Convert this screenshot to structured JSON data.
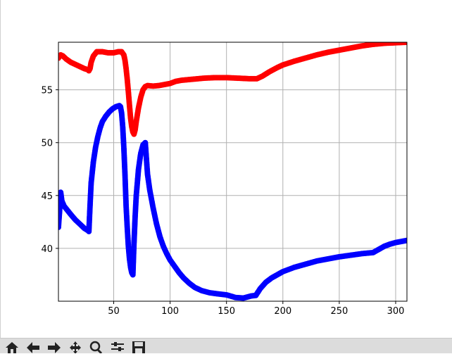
{
  "window": {
    "title": ""
  },
  "toolbar": {
    "buttons": [
      {
        "name": "home",
        "icon": "home-icon"
      },
      {
        "name": "back",
        "icon": "back-arrow-icon"
      },
      {
        "name": "forward",
        "icon": "forward-arrow-icon"
      },
      {
        "name": "pan",
        "icon": "pan-move-icon"
      },
      {
        "name": "zoom",
        "icon": "zoom-magnifier-icon"
      },
      {
        "name": "configure-subplots",
        "icon": "sliders-icon"
      },
      {
        "name": "save",
        "icon": "save-floppy-icon"
      }
    ]
  },
  "chart_data": {
    "type": "scatter",
    "title": "",
    "xlabel": "",
    "ylabel": "",
    "grid": true,
    "xlim": [
      1,
      310
    ],
    "ylim": [
      35,
      59.5
    ],
    "xticks": [
      50,
      100,
      150,
      200,
      250,
      300
    ],
    "yticks": [
      40,
      45,
      50,
      55
    ],
    "xtick_labels": [
      "50",
      "100",
      "150",
      "200",
      "250",
      "300"
    ],
    "ytick_labels": [
      "40",
      "45",
      "50",
      "55"
    ],
    "colors": {
      "red_series": "#ff0000",
      "blue_series": "#0000ff",
      "grid": "#b0b0b0"
    },
    "series": [
      {
        "name": "red",
        "color": "#ff0000",
        "marker": "circle",
        "points": [
          [
            1,
            58.0
          ],
          [
            3,
            58.3
          ],
          [
            5,
            58.2
          ],
          [
            8,
            57.9
          ],
          [
            12,
            57.6
          ],
          [
            16,
            57.4
          ],
          [
            20,
            57.2
          ],
          [
            24,
            57.0
          ],
          [
            27,
            56.9
          ],
          [
            28,
            56.8
          ],
          [
            29,
            57.0
          ],
          [
            30,
            57.6
          ],
          [
            32,
            58.2
          ],
          [
            35,
            58.6
          ],
          [
            40,
            58.6
          ],
          [
            45,
            58.5
          ],
          [
            50,
            58.5
          ],
          [
            54,
            58.6
          ],
          [
            57,
            58.6
          ],
          [
            59,
            58.3
          ],
          [
            60,
            57.8
          ],
          [
            61,
            57.0
          ],
          [
            62,
            56.0
          ],
          [
            63,
            54.8
          ],
          [
            64,
            53.5
          ],
          [
            65,
            52.3
          ],
          [
            66,
            51.5
          ],
          [
            67,
            51.0
          ],
          [
            68,
            50.8
          ],
          [
            69,
            51.2
          ],
          [
            70,
            52.0
          ],
          [
            72,
            53.3
          ],
          [
            74,
            54.3
          ],
          [
            76,
            55.0
          ],
          [
            78,
            55.3
          ],
          [
            80,
            55.4
          ],
          [
            85,
            55.35
          ],
          [
            90,
            55.4
          ],
          [
            95,
            55.5
          ],
          [
            100,
            55.6
          ],
          [
            105,
            55.8
          ],
          [
            110,
            55.9
          ],
          [
            120,
            56.0
          ],
          [
            130,
            56.1
          ],
          [
            140,
            56.15
          ],
          [
            150,
            56.15
          ],
          [
            160,
            56.1
          ],
          [
            170,
            56.05
          ],
          [
            177,
            56.05
          ],
          [
            182,
            56.3
          ],
          [
            188,
            56.7
          ],
          [
            195,
            57.1
          ],
          [
            200,
            57.35
          ],
          [
            210,
            57.7
          ],
          [
            220,
            58.0
          ],
          [
            230,
            58.3
          ],
          [
            240,
            58.55
          ],
          [
            250,
            58.75
          ],
          [
            260,
            58.95
          ],
          [
            270,
            59.15
          ],
          [
            280,
            59.3
          ],
          [
            290,
            59.4
          ],
          [
            300,
            59.45
          ],
          [
            310,
            59.5
          ]
        ]
      },
      {
        "name": "blue",
        "color": "#0000ff",
        "marker": "circle",
        "points": [
          [
            1,
            42.0
          ],
          [
            2,
            43.5
          ],
          [
            3,
            45.3
          ],
          [
            4,
            44.5
          ],
          [
            6,
            44.0
          ],
          [
            9,
            43.6
          ],
          [
            12,
            43.2
          ],
          [
            16,
            42.7
          ],
          [
            20,
            42.3
          ],
          [
            24,
            41.9
          ],
          [
            27,
            41.7
          ],
          [
            28,
            41.6
          ],
          [
            29,
            44.0
          ],
          [
            30,
            46.2
          ],
          [
            32,
            48.2
          ],
          [
            34,
            49.6
          ],
          [
            36,
            50.6
          ],
          [
            38,
            51.4
          ],
          [
            40,
            52.0
          ],
          [
            43,
            52.5
          ],
          [
            46,
            52.9
          ],
          [
            49,
            53.2
          ],
          [
            52,
            53.4
          ],
          [
            55,
            53.5
          ],
          [
            56,
            53.4
          ],
          [
            57,
            52.8
          ],
          [
            58,
            51.5
          ],
          [
            59,
            49.5
          ],
          [
            60,
            47.0
          ],
          [
            61,
            44.0
          ],
          [
            62,
            42.0
          ],
          [
            63,
            40.2
          ],
          [
            64,
            39.0
          ],
          [
            65,
            38.2
          ],
          [
            66,
            37.7
          ],
          [
            67,
            37.5
          ],
          [
            68,
            40.5
          ],
          [
            69,
            43.0
          ],
          [
            70,
            45.0
          ],
          [
            72,
            47.5
          ],
          [
            74,
            49.0
          ],
          [
            76,
            49.8
          ],
          [
            78,
            50.0
          ],
          [
            80,
            47.0
          ],
          [
            82,
            45.5
          ],
          [
            85,
            43.8
          ],
          [
            88,
            42.3
          ],
          [
            91,
            41.1
          ],
          [
            94,
            40.2
          ],
          [
            97,
            39.5
          ],
          [
            100,
            38.9
          ],
          [
            104,
            38.3
          ],
          [
            108,
            37.7
          ],
          [
            112,
            37.2
          ],
          [
            117,
            36.7
          ],
          [
            122,
            36.3
          ],
          [
            128,
            36.0
          ],
          [
            135,
            35.8
          ],
          [
            142,
            35.7
          ],
          [
            150,
            35.6
          ],
          [
            158,
            35.35
          ],
          [
            165,
            35.3
          ],
          [
            172,
            35.5
          ],
          [
            176,
            35.55
          ],
          [
            180,
            36.2
          ],
          [
            185,
            36.8
          ],
          [
            190,
            37.2
          ],
          [
            195,
            37.5
          ],
          [
            200,
            37.8
          ],
          [
            210,
            38.2
          ],
          [
            220,
            38.5
          ],
          [
            230,
            38.8
          ],
          [
            240,
            39.0
          ],
          [
            250,
            39.2
          ],
          [
            260,
            39.35
          ],
          [
            270,
            39.5
          ],
          [
            280,
            39.6
          ],
          [
            285,
            39.9
          ],
          [
            290,
            40.2
          ],
          [
            295,
            40.4
          ],
          [
            300,
            40.55
          ],
          [
            305,
            40.65
          ],
          [
            310,
            40.75
          ]
        ]
      }
    ]
  }
}
